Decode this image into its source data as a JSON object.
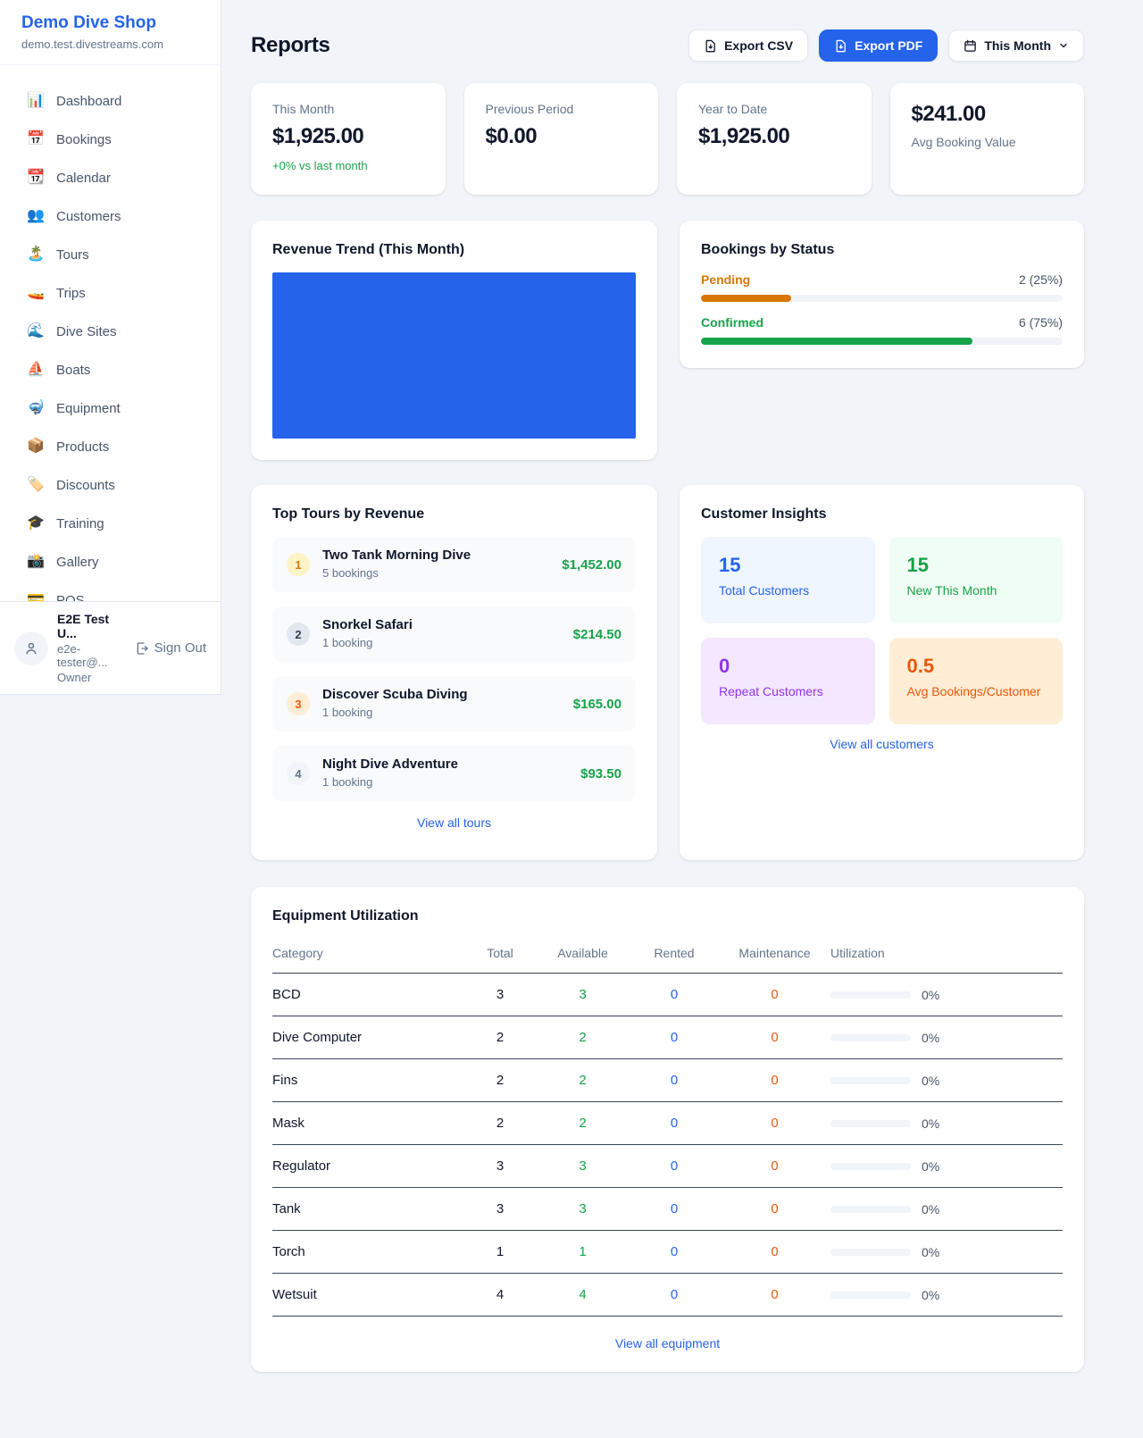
{
  "colors": {
    "accent": "#2563eb",
    "green": "#16a34a",
    "orange": "#d97706",
    "deep_orange": "#ea580c",
    "purple": "#9333ea"
  },
  "sidebar": {
    "brand": {
      "name": "Demo Dive Shop",
      "domain": "demo.test.divestreams.com"
    },
    "items": [
      {
        "icon": "📊",
        "label": "Dashboard"
      },
      {
        "icon": "📅",
        "label": "Bookings"
      },
      {
        "icon": "📆",
        "label": "Calendar"
      },
      {
        "icon": "👥",
        "label": "Customers"
      },
      {
        "icon": "🏝️",
        "label": "Tours"
      },
      {
        "icon": "🚤",
        "label": "Trips"
      },
      {
        "icon": "🌊",
        "label": "Dive Sites"
      },
      {
        "icon": "⛵",
        "label": "Boats"
      },
      {
        "icon": "🤿",
        "label": "Equipment"
      },
      {
        "icon": "📦",
        "label": "Products"
      },
      {
        "icon": "🏷️",
        "label": "Discounts"
      },
      {
        "icon": "🎓",
        "label": "Training"
      },
      {
        "icon": "📸",
        "label": "Gallery"
      },
      {
        "icon": "💳",
        "label": "POS"
      }
    ],
    "user": {
      "name": "E2E Test U...",
      "email": "e2e-tester@...",
      "role": "Owner",
      "sign_out": "Sign Out"
    }
  },
  "header": {
    "title": "Reports",
    "export_csv": "Export CSV",
    "export_pdf": "Export PDF",
    "period": "This Month"
  },
  "stats": [
    {
      "label": "This Month",
      "value": "$1,925.00",
      "delta": "+0% vs last month"
    },
    {
      "label": "Previous Period",
      "value": "$0.00"
    },
    {
      "label": "Year to Date",
      "value": "$1,925.00"
    },
    {
      "value": "$241.00",
      "label": "Avg Booking Value"
    }
  ],
  "revenue_trend": {
    "title": "Revenue Trend (This Month)",
    "chart": {
      "type": "bar",
      "fill_color": "#2563eb",
      "note": "single full-width bar, no axis labels visible"
    }
  },
  "bookings_by_status": {
    "title": "Bookings by Status",
    "items": [
      {
        "label": "Pending",
        "value": "2 (25%)",
        "percent": 25,
        "color": "#d97706"
      },
      {
        "label": "Confirmed",
        "value": "6 (75%)",
        "percent": 75,
        "color": "#16a34a"
      }
    ]
  },
  "top_tours": {
    "title": "Top Tours by Revenue",
    "items": [
      {
        "rank": "1",
        "name": "Two Tank Morning Dive",
        "bookings": "5 bookings",
        "amount": "$1,452.00",
        "badge_bg": "#fef3c7",
        "badge_color": "#d97706"
      },
      {
        "rank": "2",
        "name": "Snorkel Safari",
        "bookings": "1 booking",
        "amount": "$214.50",
        "badge_bg": "#e2e8f0",
        "badge_color": "#334155"
      },
      {
        "rank": "3",
        "name": "Discover Scuba Diving",
        "bookings": "1 booking",
        "amount": "$165.00",
        "badge_bg": "#ffedd5",
        "badge_color": "#ea580c"
      },
      {
        "rank": "4",
        "name": "Night Dive Adventure",
        "bookings": "1 booking",
        "amount": "$93.50",
        "badge_bg": "#f1f5f9",
        "badge_color": "#64748b"
      }
    ],
    "view_all": "View all tours"
  },
  "customer_insights": {
    "title": "Customer Insights",
    "tiles": [
      {
        "value": "15",
        "label": "Total Customers",
        "color": "#2563eb",
        "bg": "#eff6ff"
      },
      {
        "value": "15",
        "label": "New This Month",
        "color": "#16a34a",
        "bg": "#f0fdf4"
      },
      {
        "value": "0",
        "label": "Repeat Customers",
        "color": "#9333ea",
        "bg": "#f3e8ff"
      },
      {
        "value": "0.5",
        "label": "Avg Bookings/Customer",
        "color": "#ea580c",
        "bg": "#ffedd5"
      }
    ],
    "view_all": "View all customers"
  },
  "equipment": {
    "title": "Equipment Utilization",
    "columns": [
      "Category",
      "Total",
      "Available",
      "Rented",
      "Maintenance",
      "Utilization"
    ],
    "rows": [
      {
        "category": "BCD",
        "total": "3",
        "available": "3",
        "rented": "0",
        "maintenance": "0",
        "utilization": "0%"
      },
      {
        "category": "Dive Computer",
        "total": "2",
        "available": "2",
        "rented": "0",
        "maintenance": "0",
        "utilization": "0%"
      },
      {
        "category": "Fins",
        "total": "2",
        "available": "2",
        "rented": "0",
        "maintenance": "0",
        "utilization": "0%"
      },
      {
        "category": "Mask",
        "total": "2",
        "available": "2",
        "rented": "0",
        "maintenance": "0",
        "utilization": "0%"
      },
      {
        "category": "Regulator",
        "total": "3",
        "available": "3",
        "rented": "0",
        "maintenance": "0",
        "utilization": "0%"
      },
      {
        "category": "Tank",
        "total": "3",
        "available": "3",
        "rented": "0",
        "maintenance": "0",
        "utilization": "0%"
      },
      {
        "category": "Torch",
        "total": "1",
        "available": "1",
        "rented": "0",
        "maintenance": "0",
        "utilization": "0%"
      },
      {
        "category": "Wetsuit",
        "total": "4",
        "available": "4",
        "rented": "0",
        "maintenance": "0",
        "utilization": "0%"
      }
    ],
    "view_all": "View all equipment"
  }
}
